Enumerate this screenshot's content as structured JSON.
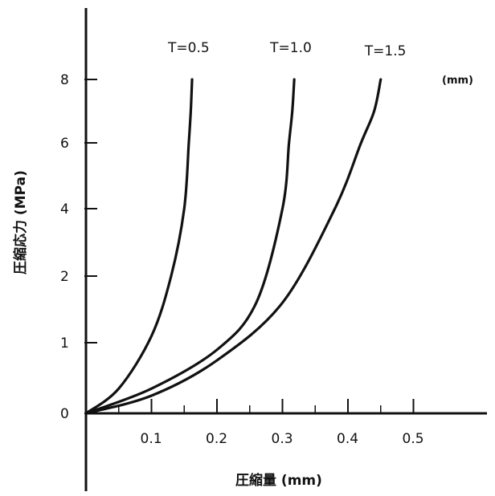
{
  "chart_data": {
    "type": "line",
    "title": "",
    "xlabel": "圧縮量 (mm)",
    "ylabel": "圧縮応力 (MPa)",
    "unit_note": "(mm)",
    "x_ticks": [
      {
        "value": 0.1,
        "label": "0.1"
      },
      {
        "value": 0.2,
        "label": "0.2"
      },
      {
        "value": 0.3,
        "label": "0.3"
      },
      {
        "value": 0.4,
        "label": "0.4"
      },
      {
        "value": 0.5,
        "label": "0.5"
      }
    ],
    "y_ticks": [
      {
        "value": 0,
        "label": "0"
      },
      {
        "value": 1,
        "label": "1"
      },
      {
        "value": 2,
        "label": "2"
      },
      {
        "value": 4,
        "label": "4"
      },
      {
        "value": 6,
        "label": "6"
      },
      {
        "value": 8,
        "label": "8"
      }
    ],
    "y_scale_note": "non-linear (compressed below 2)",
    "series": [
      {
        "name": "T=0.5",
        "x": [
          0,
          0.05,
          0.1,
          0.13,
          0.15,
          0.157,
          0.16,
          0.162
        ],
        "y": [
          0,
          0.35,
          1.1,
          2.0,
          4.0,
          6.0,
          7.0,
          8.0
        ]
      },
      {
        "name": "T=1.0",
        "x": [
          0,
          0.1,
          0.2,
          0.26,
          0.3,
          0.31,
          0.315,
          0.318
        ],
        "y": [
          0,
          0.35,
          0.9,
          1.6,
          4.0,
          6.0,
          7.0,
          8.0
        ]
      },
      {
        "name": "T=1.5",
        "x": [
          0,
          0.1,
          0.2,
          0.3,
          0.38,
          0.42,
          0.44,
          0.45
        ],
        "y": [
          0,
          0.25,
          0.75,
          1.6,
          4.0,
          6.0,
          7.0,
          8.0
        ]
      }
    ],
    "grid": false
  }
}
